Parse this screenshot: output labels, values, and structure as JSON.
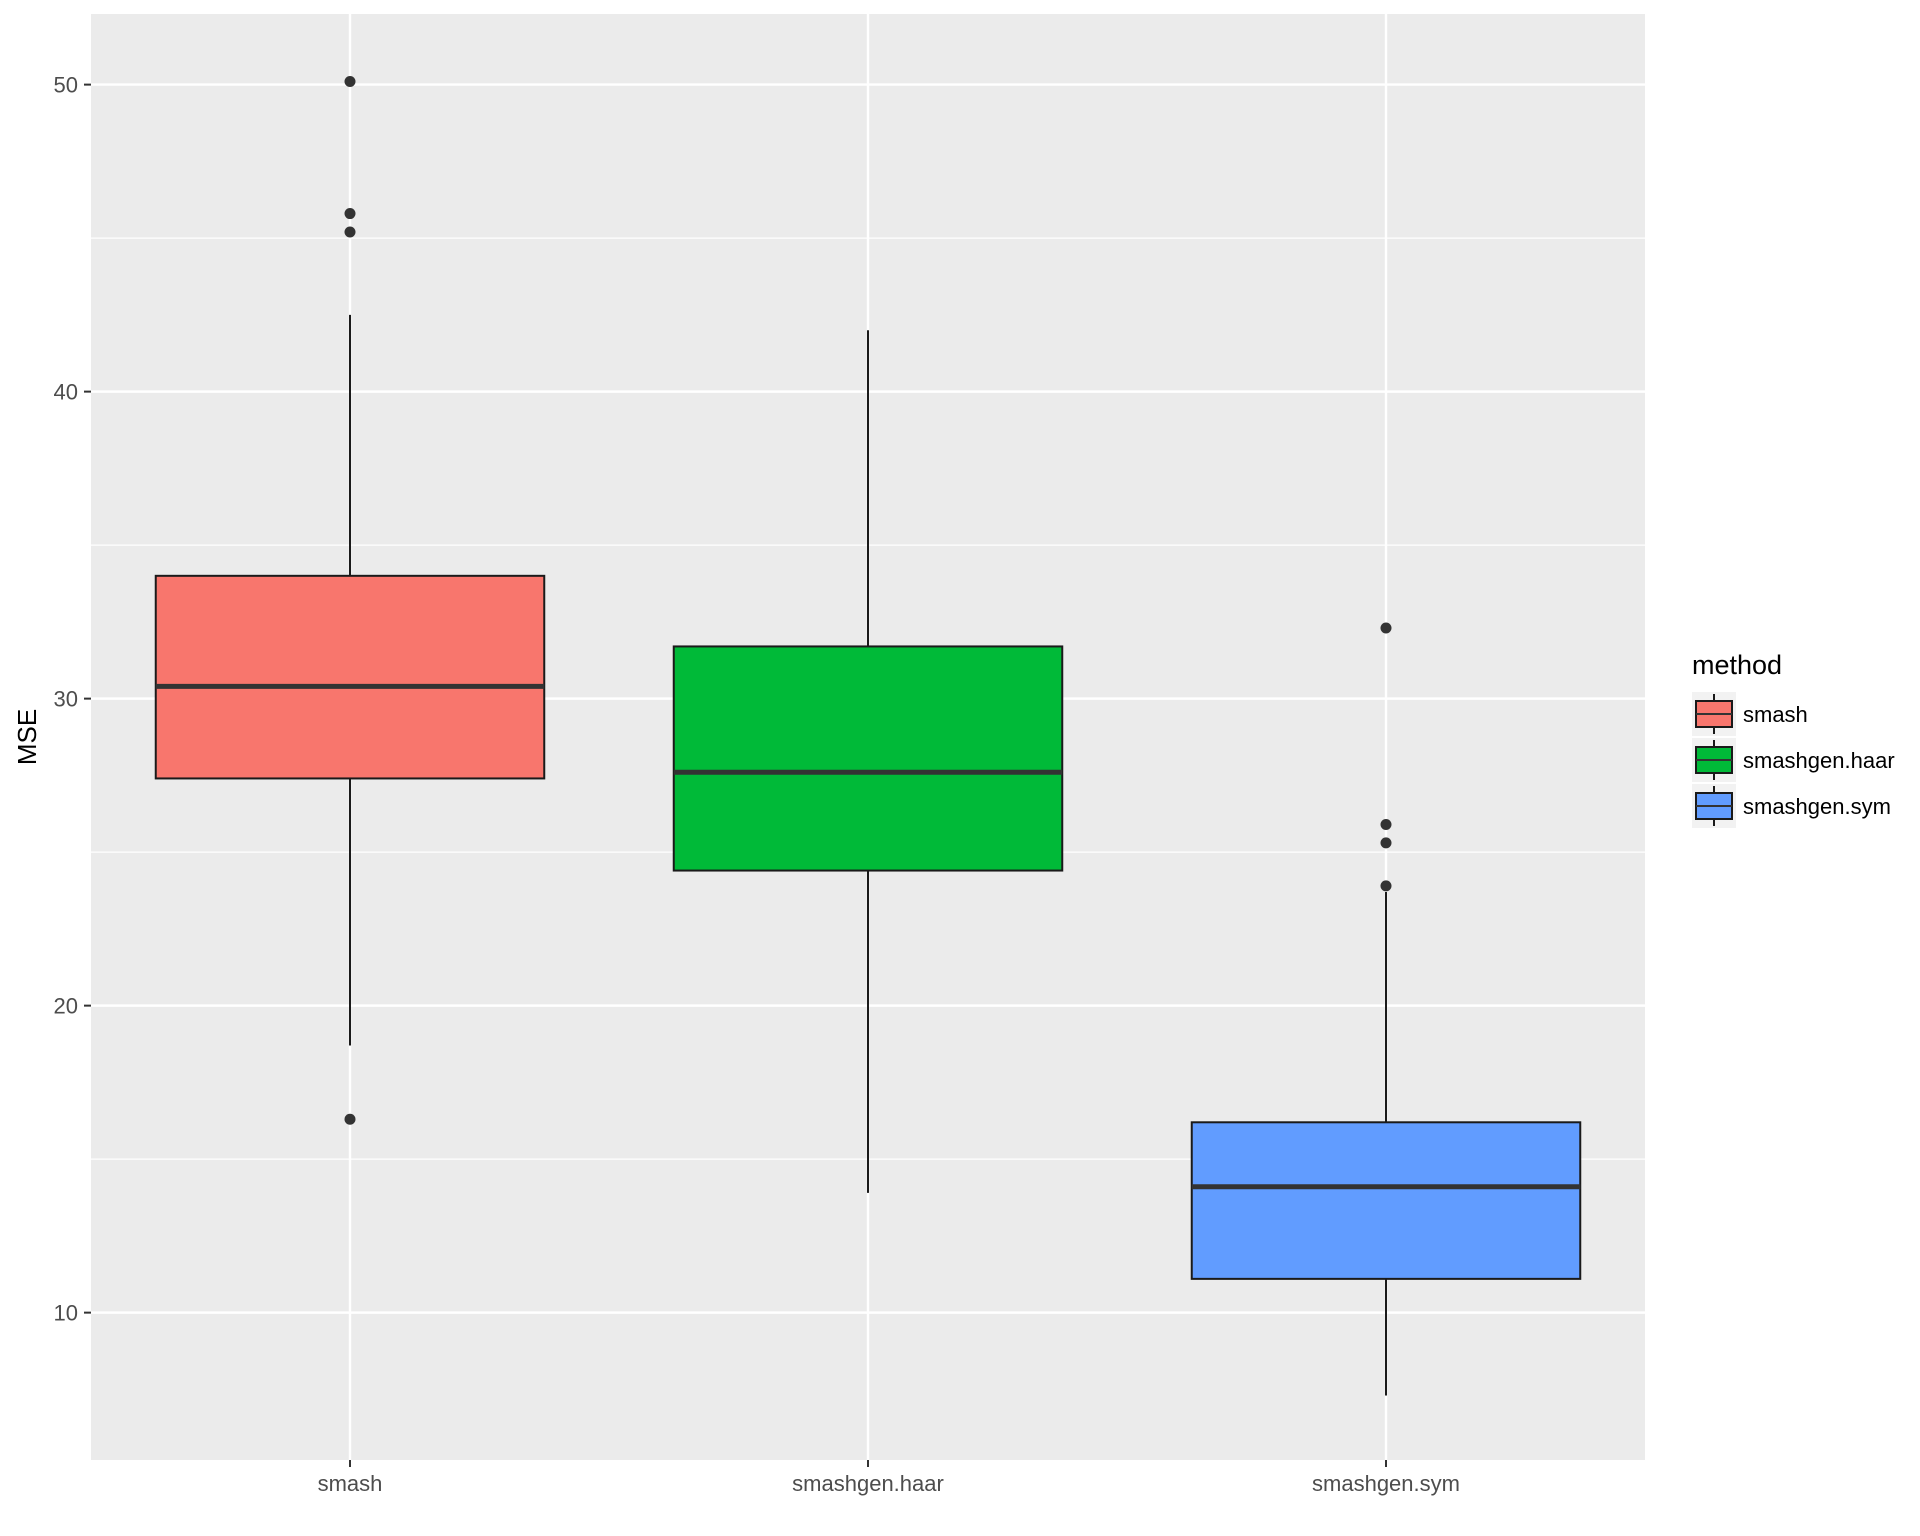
{
  "chart_data": {
    "type": "boxplot",
    "title": "",
    "xlabel": "",
    "ylabel": "MSE",
    "ylim": [
      5.2,
      52.3
    ],
    "yticks": [
      10,
      20,
      30,
      40,
      50
    ],
    "grid": true,
    "legend": {
      "title": "method",
      "placement": "right"
    },
    "categories": [
      "smash",
      "smashgen.haar",
      "smashgen.sym"
    ],
    "series": [
      {
        "name": "smash",
        "color": "#F8766D",
        "whisker_low": 18.7,
        "q1": 27.4,
        "median": 30.4,
        "q3": 34.0,
        "whisker_high": 42.5,
        "outliers": [
          50.1,
          45.8,
          45.2,
          16.3
        ]
      },
      {
        "name": "smashgen.haar",
        "color": "#00BA38",
        "whisker_low": 13.9,
        "q1": 24.4,
        "median": 27.6,
        "q3": 31.7,
        "whisker_high": 42.0,
        "outliers": []
      },
      {
        "name": "smashgen.sym",
        "color": "#619CFF",
        "whisker_low": 7.3,
        "q1": 11.1,
        "median": 14.1,
        "q3": 16.2,
        "whisker_high": 23.7,
        "outliers": [
          32.3,
          25.9,
          25.3,
          23.9
        ]
      }
    ]
  }
}
